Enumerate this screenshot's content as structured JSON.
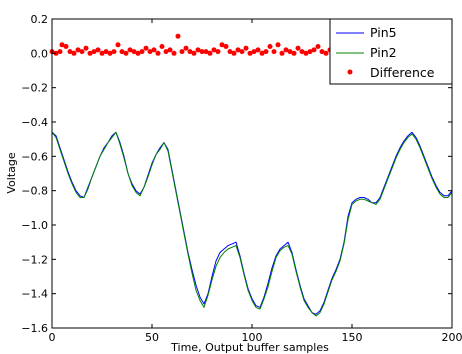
{
  "chart_data": {
    "type": "line",
    "title": "",
    "xlabel": "Time, Output buffer samples",
    "ylabel": "Voltage",
    "xlim": [
      0,
      200
    ],
    "ylim": [
      -1.6,
      0.2
    ],
    "x_ticks": [
      0,
      50,
      100,
      150,
      200
    ],
    "y_ticks": [
      0.2,
      0.0,
      -0.2,
      -0.4,
      -0.6,
      -0.8,
      -1.0,
      -1.2,
      -1.4,
      -1.6
    ],
    "x_tick_labels": [
      "0",
      "50",
      "100",
      "150",
      "200"
    ],
    "y_tick_labels": [
      "0.2",
      "0.0",
      "−0.2",
      "−0.4",
      "−0.6",
      "−0.8",
      "−1.0",
      "−1.2",
      "−1.4",
      "−1.6"
    ],
    "legend_position": "top-right",
    "colors": {
      "pin5": "#0000ff",
      "pin2": "#008000",
      "difference": "#ff0000"
    },
    "series": [
      {
        "name": "Pin5",
        "style": "line",
        "color": "#0000ff",
        "points": [
          [
            0,
            -0.46
          ],
          [
            2,
            -0.48
          ],
          [
            4,
            -0.55
          ],
          [
            6,
            -0.62
          ],
          [
            8,
            -0.69
          ],
          [
            10,
            -0.75
          ],
          [
            12,
            -0.8
          ],
          [
            14,
            -0.83
          ],
          [
            16,
            -0.84
          ],
          [
            18,
            -0.78
          ],
          [
            20,
            -0.72
          ],
          [
            22,
            -0.66
          ],
          [
            24,
            -0.6
          ],
          [
            26,
            -0.55
          ],
          [
            28,
            -0.52
          ],
          [
            30,
            -0.48
          ],
          [
            32,
            -0.46
          ],
          [
            34,
            -0.52
          ],
          [
            36,
            -0.6
          ],
          [
            38,
            -0.7
          ],
          [
            40,
            -0.76
          ],
          [
            42,
            -0.8
          ],
          [
            44,
            -0.82
          ],
          [
            46,
            -0.78
          ],
          [
            48,
            -0.71
          ],
          [
            50,
            -0.64
          ],
          [
            52,
            -0.59
          ],
          [
            54,
            -0.55
          ],
          [
            56,
            -0.52
          ],
          [
            58,
            -0.56
          ],
          [
            60,
            -0.68
          ],
          [
            62,
            -0.8
          ],
          [
            64,
            -0.92
          ],
          [
            66,
            -1.04
          ],
          [
            68,
            -1.16
          ],
          [
            70,
            -1.26
          ],
          [
            72,
            -1.35
          ],
          [
            74,
            -1.42
          ],
          [
            76,
            -1.46
          ],
          [
            78,
            -1.4
          ],
          [
            80,
            -1.3
          ],
          [
            82,
            -1.21
          ],
          [
            84,
            -1.16
          ],
          [
            86,
            -1.14
          ],
          [
            88,
            -1.12
          ],
          [
            90,
            -1.11
          ],
          [
            92,
            -1.1
          ],
          [
            94,
            -1.18
          ],
          [
            96,
            -1.28
          ],
          [
            98,
            -1.37
          ],
          [
            100,
            -1.43
          ],
          [
            102,
            -1.47
          ],
          [
            104,
            -1.48
          ],
          [
            106,
            -1.42
          ],
          [
            108,
            -1.34
          ],
          [
            110,
            -1.25
          ],
          [
            112,
            -1.18
          ],
          [
            114,
            -1.14
          ],
          [
            116,
            -1.12
          ],
          [
            118,
            -1.1
          ],
          [
            120,
            -1.16
          ],
          [
            122,
            -1.26
          ],
          [
            124,
            -1.35
          ],
          [
            126,
            -1.43
          ],
          [
            128,
            -1.47
          ],
          [
            130,
            -1.51
          ],
          [
            132,
            -1.52
          ],
          [
            134,
            -1.5
          ],
          [
            136,
            -1.45
          ],
          [
            138,
            -1.38
          ],
          [
            140,
            -1.31
          ],
          [
            142,
            -1.26
          ],
          [
            144,
            -1.2
          ],
          [
            146,
            -1.1
          ],
          [
            148,
            -0.95
          ],
          [
            150,
            -0.87
          ],
          [
            152,
            -0.85
          ],
          [
            154,
            -0.84
          ],
          [
            156,
            -0.84
          ],
          [
            158,
            -0.85
          ],
          [
            160,
            -0.87
          ],
          [
            162,
            -0.87
          ],
          [
            164,
            -0.84
          ],
          [
            166,
            -0.78
          ],
          [
            168,
            -0.72
          ],
          [
            170,
            -0.66
          ],
          [
            172,
            -0.6
          ],
          [
            174,
            -0.55
          ],
          [
            176,
            -0.51
          ],
          [
            178,
            -0.48
          ],
          [
            180,
            -0.46
          ],
          [
            182,
            -0.49
          ],
          [
            184,
            -0.54
          ],
          [
            186,
            -0.6
          ],
          [
            188,
            -0.66
          ],
          [
            190,
            -0.72
          ],
          [
            192,
            -0.77
          ],
          [
            194,
            -0.81
          ],
          [
            196,
            -0.83
          ],
          [
            198,
            -0.83
          ],
          [
            200,
            -0.8
          ]
        ]
      },
      {
        "name": "Pin2",
        "style": "line",
        "color": "#008000",
        "points": [
          [
            0,
            -0.46
          ],
          [
            2,
            -0.49
          ],
          [
            4,
            -0.56
          ],
          [
            6,
            -0.63
          ],
          [
            8,
            -0.7
          ],
          [
            10,
            -0.76
          ],
          [
            12,
            -0.81
          ],
          [
            14,
            -0.84
          ],
          [
            16,
            -0.84
          ],
          [
            18,
            -0.79
          ],
          [
            20,
            -0.72
          ],
          [
            22,
            -0.66
          ],
          [
            24,
            -0.6
          ],
          [
            26,
            -0.56
          ],
          [
            28,
            -0.52
          ],
          [
            30,
            -0.49
          ],
          [
            32,
            -0.46
          ],
          [
            34,
            -0.53
          ],
          [
            36,
            -0.61
          ],
          [
            38,
            -0.7
          ],
          [
            40,
            -0.77
          ],
          [
            42,
            -0.81
          ],
          [
            44,
            -0.83
          ],
          [
            46,
            -0.78
          ],
          [
            48,
            -0.72
          ],
          [
            50,
            -0.65
          ],
          [
            52,
            -0.59
          ],
          [
            54,
            -0.56
          ],
          [
            56,
            -0.52
          ],
          [
            58,
            -0.57
          ],
          [
            60,
            -0.69
          ],
          [
            62,
            -0.81
          ],
          [
            64,
            -0.93
          ],
          [
            66,
            -1.05
          ],
          [
            68,
            -1.17
          ],
          [
            70,
            -1.28
          ],
          [
            72,
            -1.38
          ],
          [
            74,
            -1.44
          ],
          [
            76,
            -1.48
          ],
          [
            78,
            -1.41
          ],
          [
            80,
            -1.32
          ],
          [
            82,
            -1.24
          ],
          [
            84,
            -1.19
          ],
          [
            86,
            -1.16
          ],
          [
            88,
            -1.14
          ],
          [
            90,
            -1.13
          ],
          [
            92,
            -1.12
          ],
          [
            94,
            -1.19
          ],
          [
            96,
            -1.29
          ],
          [
            98,
            -1.38
          ],
          [
            100,
            -1.44
          ],
          [
            102,
            -1.48
          ],
          [
            104,
            -1.49
          ],
          [
            106,
            -1.43
          ],
          [
            108,
            -1.36
          ],
          [
            110,
            -1.27
          ],
          [
            112,
            -1.19
          ],
          [
            114,
            -1.15
          ],
          [
            116,
            -1.13
          ],
          [
            118,
            -1.12
          ],
          [
            120,
            -1.17
          ],
          [
            122,
            -1.27
          ],
          [
            124,
            -1.36
          ],
          [
            126,
            -1.44
          ],
          [
            128,
            -1.48
          ],
          [
            130,
            -1.51
          ],
          [
            132,
            -1.53
          ],
          [
            134,
            -1.51
          ],
          [
            136,
            -1.46
          ],
          [
            138,
            -1.39
          ],
          [
            140,
            -1.32
          ],
          [
            142,
            -1.27
          ],
          [
            144,
            -1.21
          ],
          [
            146,
            -1.11
          ],
          [
            148,
            -0.97
          ],
          [
            150,
            -0.88
          ],
          [
            152,
            -0.86
          ],
          [
            154,
            -0.85
          ],
          [
            156,
            -0.85
          ],
          [
            158,
            -0.86
          ],
          [
            160,
            -0.87
          ],
          [
            162,
            -0.88
          ],
          [
            164,
            -0.85
          ],
          [
            166,
            -0.79
          ],
          [
            168,
            -0.73
          ],
          [
            170,
            -0.67
          ],
          [
            172,
            -0.61
          ],
          [
            174,
            -0.56
          ],
          [
            176,
            -0.52
          ],
          [
            178,
            -0.49
          ],
          [
            180,
            -0.47
          ],
          [
            182,
            -0.5
          ],
          [
            184,
            -0.55
          ],
          [
            186,
            -0.61
          ],
          [
            188,
            -0.67
          ],
          [
            190,
            -0.73
          ],
          [
            192,
            -0.78
          ],
          [
            194,
            -0.82
          ],
          [
            196,
            -0.84
          ],
          [
            198,
            -0.84
          ],
          [
            200,
            -0.81
          ]
        ]
      },
      {
        "name": "Difference",
        "style": "scatter",
        "color": "#ff0000",
        "points": [
          [
            0,
            0.01
          ],
          [
            2,
            0.0
          ],
          [
            4,
            0.01
          ],
          [
            5,
            0.05
          ],
          [
            7,
            0.04
          ],
          [
            9,
            0.01
          ],
          [
            11,
            0.0
          ],
          [
            13,
            0.02
          ],
          [
            15,
            0.01
          ],
          [
            17,
            0.03
          ],
          [
            19,
            0.0
          ],
          [
            21,
            0.01
          ],
          [
            23,
            0.02
          ],
          [
            25,
            0.0
          ],
          [
            27,
            0.01
          ],
          [
            29,
            0.0
          ],
          [
            31,
            0.01
          ],
          [
            33,
            0.05
          ],
          [
            35,
            0.01
          ],
          [
            37,
            0.0
          ],
          [
            39,
            0.02
          ],
          [
            41,
            0.01
          ],
          [
            43,
            0.0
          ],
          [
            45,
            0.01
          ],
          [
            47,
            0.03
          ],
          [
            49,
            0.01
          ],
          [
            51,
            0.02
          ],
          [
            53,
            0.0
          ],
          [
            55,
            0.04
          ],
          [
            57,
            0.01
          ],
          [
            59,
            0.02
          ],
          [
            61,
            0.0
          ],
          [
            63,
            0.1
          ],
          [
            65,
            0.01
          ],
          [
            67,
            0.03
          ],
          [
            69,
            0.01
          ],
          [
            71,
            0.0
          ],
          [
            73,
            0.02
          ],
          [
            75,
            0.01
          ],
          [
            77,
            0.01
          ],
          [
            79,
            0.0
          ],
          [
            81,
            0.02
          ],
          [
            83,
            0.01
          ],
          [
            85,
            0.05
          ],
          [
            87,
            0.04
          ],
          [
            89,
            0.01
          ],
          [
            91,
            0.0
          ],
          [
            93,
            0.02
          ],
          [
            95,
            0.01
          ],
          [
            97,
            0.03
          ],
          [
            99,
            0.0
          ],
          [
            101,
            0.01
          ],
          [
            103,
            0.02
          ],
          [
            105,
            0.0
          ],
          [
            107,
            0.01
          ],
          [
            109,
            0.04
          ],
          [
            111,
            0.01
          ],
          [
            113,
            0.05
          ],
          [
            115,
            0.0
          ],
          [
            117,
            0.02
          ],
          [
            119,
            0.01
          ],
          [
            121,
            0.0
          ],
          [
            123,
            0.03
          ],
          [
            125,
            0.01
          ],
          [
            127,
            0.0
          ],
          [
            129,
            0.01
          ],
          [
            131,
            0.02
          ],
          [
            133,
            0.04
          ],
          [
            135,
            0.01
          ],
          [
            137,
            0.0
          ],
          [
            139,
            0.02
          ],
          [
            141,
            0.01
          ],
          [
            143,
            0.0
          ],
          [
            145,
            0.01
          ],
          [
            147,
            0.03
          ],
          [
            149,
            0.0
          ],
          [
            151,
            0.01
          ],
          [
            153,
            0.02
          ],
          [
            155,
            0.01
          ],
          [
            157,
            0.0
          ],
          [
            159,
            0.01
          ],
          [
            161,
            0.02
          ],
          [
            163,
            0.0
          ],
          [
            165,
            0.01
          ],
          [
            167,
            0.02
          ],
          [
            169,
            0.0
          ],
          [
            171,
            0.01
          ],
          [
            173,
            0.04
          ],
          [
            175,
            0.0
          ],
          [
            177,
            0.01
          ],
          [
            179,
            0.02
          ],
          [
            181,
            0.0
          ],
          [
            183,
            0.01
          ],
          [
            185,
            0.03
          ],
          [
            187,
            0.01
          ],
          [
            189,
            0.0
          ],
          [
            191,
            0.02
          ],
          [
            193,
            0.01
          ],
          [
            195,
            0.0
          ],
          [
            197,
            0.01
          ],
          [
            199,
            0.0
          ]
        ]
      }
    ]
  }
}
